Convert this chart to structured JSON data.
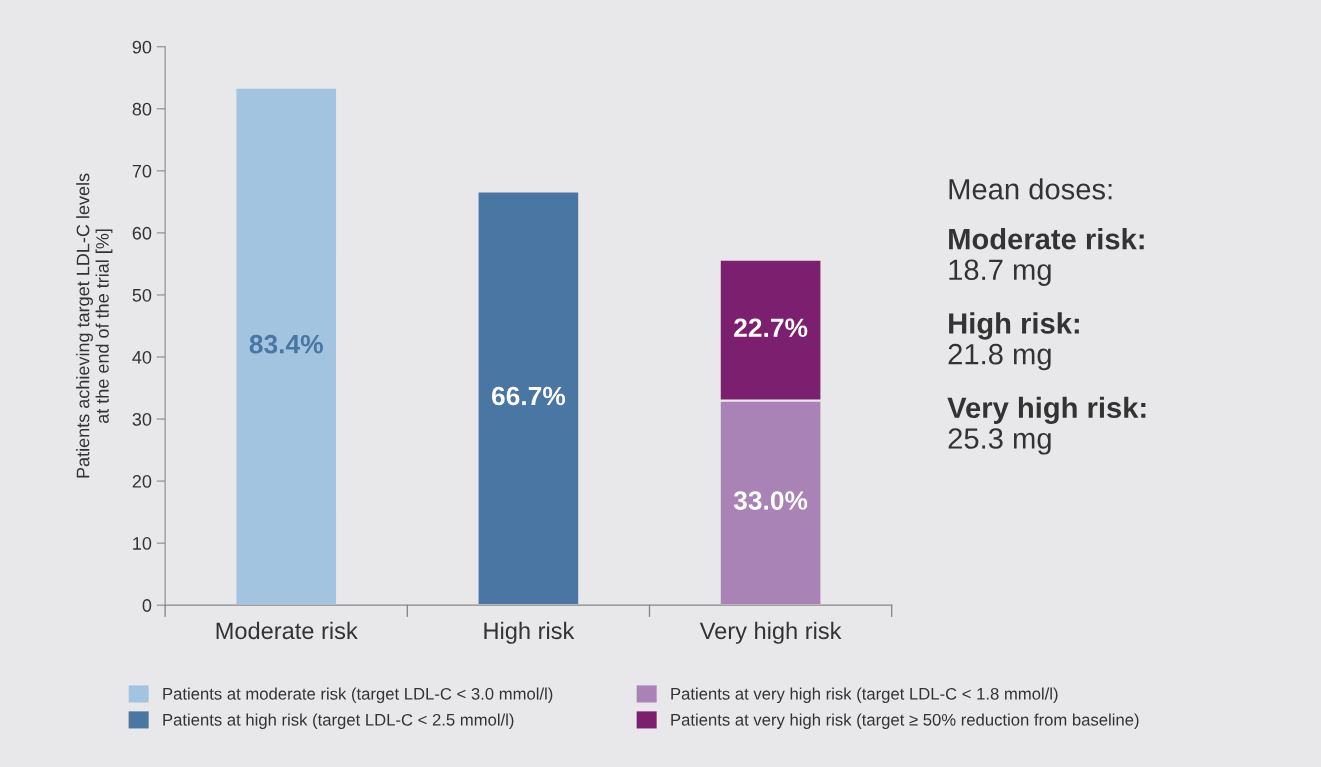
{
  "chart_data": {
    "type": "bar",
    "stacked": true,
    "ylabel": "Patients achieving target LDL-C levels\nat the end of the trial [%]",
    "categories": [
      "Moderate risk",
      "High risk",
      "Very high risk"
    ],
    "series": [
      {
        "name": "Patients at moderate risk (target LDL-C < 3.0 mmol/l)",
        "color": "#a3c4e0",
        "values": [
          83.4,
          null,
          null
        ],
        "value_labels": [
          "83.4%",
          null,
          null
        ]
      },
      {
        "name": "Patients at high risk (target LDL-C < 2.5 mmol/l)",
        "color": "#4a76a4",
        "values": [
          null,
          66.7,
          null
        ],
        "value_labels": [
          null,
          "66.7%",
          null
        ]
      },
      {
        "name": "Patients at very high risk (target LDL-C < 1.8 mmol/l)",
        "color": "#a983b6",
        "values": [
          null,
          null,
          33.0
        ],
        "value_labels": [
          null,
          null,
          "33.0%"
        ]
      },
      {
        "name": "Patients at very high risk (target ≥ 50% reduction from baseline)",
        "color": "#7b1f6e",
        "values": [
          null,
          null,
          22.7
        ],
        "value_labels": [
          null,
          null,
          "22.7%"
        ]
      }
    ],
    "ylim": [
      0,
      90
    ],
    "yticks": [
      0,
      10,
      20,
      30,
      40,
      50,
      60,
      70,
      80,
      90
    ],
    "grid": false,
    "legend": "bottom",
    "annotations": [
      "Mean doses:",
      "Moderate risk:",
      "18.7 mg",
      "High risk:",
      "21.8 mg",
      "Very high risk:",
      "25.3 mg"
    ]
  }
}
